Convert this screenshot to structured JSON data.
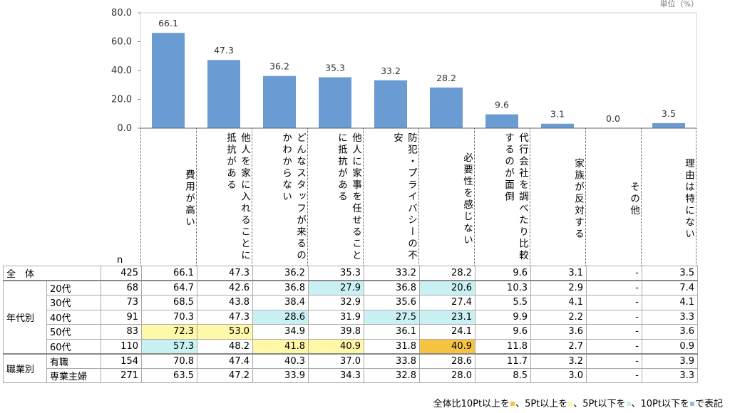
{
  "unit_label": "単位（%）",
  "chart_data": {
    "type": "bar",
    "title": "",
    "xlabel": "",
    "ylabel": "",
    "ylim": [
      0,
      80
    ],
    "yticks": [
      "80.0",
      "60.0",
      "40.0",
      "20.0",
      "0.0"
    ],
    "grid": true,
    "bar_color": "#6a9bd2",
    "categories": [
      "費用が高い",
      "他人を家に入れることに抵抗がある",
      "どんなスタッフが来るのかわからない",
      "他人に家事を任せることに抵抗がある",
      "防犯・プライバシーの不安",
      "必要性を感じない",
      "代行会社を調べたり比較するのが面倒",
      "家族が反対する",
      "その他",
      "理由は特にない"
    ],
    "values": [
      66.1,
      47.3,
      36.2,
      35.3,
      33.2,
      28.2,
      9.6,
      3.1,
      0.0,
      3.5
    ],
    "value_labels": [
      "66.1",
      "47.3",
      "36.2",
      "35.3",
      "33.2",
      "28.2",
      "9.6",
      "3.1",
      "0.0",
      "3.5"
    ]
  },
  "table": {
    "n_header": "n",
    "highlight_colors": {
      "or": "#f6c343",
      "ye": "#fff8a8",
      "cy": "#c9f1f4",
      "bl": "#9cb8e4"
    },
    "rows": [
      {
        "group": "全　体",
        "label": "",
        "n": "425",
        "vals": [
          "66.1",
          "47.3",
          "36.2",
          "35.3",
          "33.2",
          "28.2",
          "9.6",
          "3.1",
          "-",
          "3.5"
        ],
        "hl": [
          "",
          "",
          "",
          "",
          "",
          "",
          "",
          "",
          "",
          ""
        ]
      },
      {
        "group": "年代別",
        "label": "20代",
        "n": "68",
        "vals": [
          "64.7",
          "42.6",
          "36.8",
          "27.9",
          "36.8",
          "20.6",
          "10.3",
          "2.9",
          "-",
          "7.4"
        ],
        "hl": [
          "",
          "",
          "",
          "cy",
          "",
          "cy",
          "",
          "",
          "",
          ""
        ]
      },
      {
        "group": "",
        "label": "30代",
        "n": "73",
        "vals": [
          "68.5",
          "43.8",
          "38.4",
          "32.9",
          "35.6",
          "27.4",
          "5.5",
          "4.1",
          "-",
          "4.1"
        ],
        "hl": [
          "",
          "",
          "",
          "",
          "",
          "",
          "",
          "",
          "",
          ""
        ]
      },
      {
        "group": "",
        "label": "40代",
        "n": "91",
        "vals": [
          "70.3",
          "47.3",
          "28.6",
          "31.9",
          "27.5",
          "23.1",
          "9.9",
          "2.2",
          "-",
          "3.3"
        ],
        "hl": [
          "",
          "",
          "cy",
          "",
          "cy",
          "cy",
          "",
          "",
          "",
          ""
        ]
      },
      {
        "group": "",
        "label": "50代",
        "n": "83",
        "vals": [
          "72.3",
          "53.0",
          "34.9",
          "39.8",
          "36.1",
          "24.1",
          "9.6",
          "3.6",
          "-",
          "3.6"
        ],
        "hl": [
          "ye",
          "ye",
          "",
          "",
          "",
          "",
          "",
          "",
          "",
          ""
        ]
      },
      {
        "group": "",
        "label": "60代",
        "n": "110",
        "vals": [
          "57.3",
          "48.2",
          "41.8",
          "40.9",
          "31.8",
          "40.9",
          "11.8",
          "2.7",
          "-",
          "0.9"
        ],
        "hl": [
          "cy",
          "",
          "ye",
          "ye",
          "",
          "or",
          "",
          "",
          "",
          ""
        ]
      },
      {
        "group": "職業別",
        "label": "有職",
        "n": "154",
        "vals": [
          "70.8",
          "47.4",
          "40.3",
          "37.0",
          "33.8",
          "28.6",
          "11.7",
          "3.2",
          "-",
          "3.9"
        ],
        "hl": [
          "",
          "",
          "",
          "",
          "",
          "",
          "",
          "",
          "",
          ""
        ]
      },
      {
        "group": "",
        "label": "専業主婦",
        "n": "271",
        "vals": [
          "63.5",
          "47.2",
          "33.9",
          "34.3",
          "32.8",
          "28.0",
          "8.5",
          "3.0",
          "-",
          "3.3"
        ],
        "hl": [
          "",
          "",
          "",
          "",
          "",
          "",
          "",
          "",
          "",
          ""
        ]
      }
    ]
  },
  "legend": {
    "part1": "全体比10Pt以上を",
    "part2": "、5Pt以上を",
    "part3": "、5Pt以下を",
    "part4": "、10Pt以下を",
    "part5": "で表記"
  }
}
